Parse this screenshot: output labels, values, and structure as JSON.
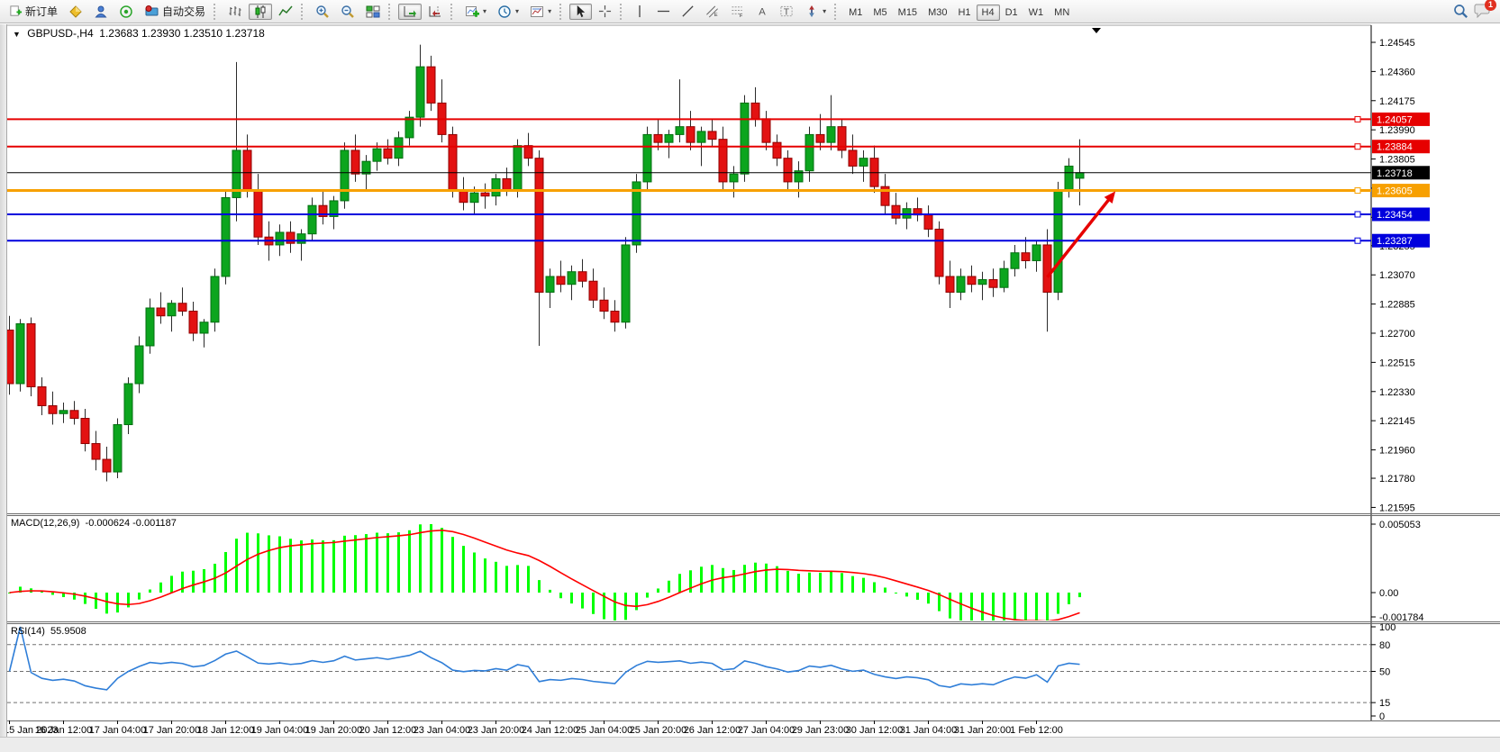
{
  "toolbar": {
    "new_order": "新订单",
    "autotrade": "自动交易",
    "timeframes": [
      "M1",
      "M5",
      "M15",
      "M30",
      "H1",
      "H4",
      "D1",
      "W1",
      "MN"
    ],
    "active_timeframe": "H4",
    "notification_badge": "1",
    "icons": [
      "new-order-icon",
      "diamond-icon",
      "profile-icon",
      "signal-icon",
      "autotrade-icon",
      "bar-chart-icon",
      "candlestick-icon",
      "line-chart-icon",
      "zoom-in-icon",
      "zoom-out-icon",
      "tile-windows-icon",
      "auto-scroll-icon",
      "chart-shift-icon",
      "indicators-icon",
      "periods-icon",
      "templates-icon",
      "cursor-icon",
      "crosshair-icon",
      "vertical-line-icon",
      "horizontal-line-icon",
      "trendline-icon",
      "channel-icon",
      "fibonacci-icon",
      "text-icon",
      "label-icon",
      "arrows-icon",
      "search-icon",
      "chat-icon"
    ]
  },
  "chart_header": {
    "symbol_period": "GBPUSD-,H4",
    "ohlc": "1.23683 1.23930 1.23510 1.23718"
  },
  "chart_data": {
    "type": "candlestick",
    "symbol": "GBPUSD",
    "period": "H4",
    "colors": {
      "bull": "#0ca51e",
      "bull_border": "#036e10",
      "bear": "#e31212",
      "bear_border": "#8f0000",
      "wick": "#2b2b2b",
      "macd_histogram": "#00ff00",
      "macd_signal": "#ff0000",
      "rsi_line": "#2f7ed8",
      "level_red": "#e60000",
      "level_blue": "#0000dd",
      "level_orange": "#f7a000",
      "bid_line": "#000000",
      "arrow": "#e60000"
    },
    "y_axis_ticks": [
      "1.24545",
      "1.24360",
      "1.24175",
      "1.23990",
      "1.23805",
      "1.23620",
      "1.23435",
      "1.23255",
      "1.23070",
      "1.22885",
      "1.22700",
      "1.22515",
      "1.22330",
      "1.22145",
      "1.21960",
      "1.21780",
      "1.21595"
    ],
    "price_lines": [
      {
        "price": 1.24057,
        "label": "1.24057",
        "color": "#e60000",
        "width": 2,
        "handle": true
      },
      {
        "price": 1.23884,
        "label": "1.23884",
        "color": "#e60000",
        "width": 2,
        "handle": true
      },
      {
        "price": 1.23718,
        "label": "1.23718",
        "color": "#000000",
        "width": 1,
        "handle": false
      },
      {
        "price": 1.23605,
        "label": "1.23605",
        "color": "#f7a000",
        "width": 3,
        "handle": true
      },
      {
        "price": 1.23454,
        "label": "1.23454",
        "color": "#0000dd",
        "width": 2,
        "handle": true
      },
      {
        "price": 1.23287,
        "label": "1.23287",
        "color": "#0000dd",
        "width": 2,
        "handle": true
      }
    ],
    "trend_arrow": {
      "x1_candle": 96,
      "price1": 1.23055,
      "x2_candle": 102.3,
      "price2": 1.236,
      "color": "#e60000"
    },
    "x_labels": [
      "15 Jan 2023",
      "16 Jan 12:00",
      "17 Jan 04:00",
      "17 Jan 20:00",
      "18 Jan 12:00",
      "19 Jan 04:00",
      "19 Jan 20:00",
      "20 Jan 12:00",
      "23 Jan 04:00",
      "23 Jan 20:00",
      "24 Jan 12:00",
      "25 Jan 04:00",
      "25 Jan 20:00",
      "26 Jan 12:00",
      "27 Jan 04:00",
      "29 Jan 23:00",
      "30 Jan 12:00",
      "31 Jan 04:00",
      "31 Jan 20:00",
      "1 Feb 12:00"
    ],
    "label_every": 5,
    "candles": [
      [
        1.2272,
        1.2281,
        1.2231,
        1.2238
      ],
      [
        1.2238,
        1.2279,
        1.2233,
        1.2276
      ],
      [
        1.2276,
        1.228,
        1.223,
        1.2236
      ],
      [
        1.2236,
        1.2242,
        1.2218,
        1.2224
      ],
      [
        1.2224,
        1.2233,
        1.2212,
        1.2219
      ],
      [
        1.2219,
        1.2226,
        1.2213,
        1.2221
      ],
      [
        1.2221,
        1.2227,
        1.2212,
        1.2216
      ],
      [
        1.2216,
        1.2222,
        1.2195,
        1.22
      ],
      [
        1.22,
        1.2208,
        1.2183,
        1.219
      ],
      [
        1.219,
        1.2198,
        1.2176,
        1.2182
      ],
      [
        1.2182,
        1.2216,
        1.2178,
        1.2212
      ],
      [
        1.2212,
        1.2242,
        1.2206,
        1.2238
      ],
      [
        1.2238,
        1.2268,
        1.2232,
        1.2262
      ],
      [
        1.2262,
        1.2292,
        1.2257,
        1.2286
      ],
      [
        1.2286,
        1.2296,
        1.2276,
        1.2281
      ],
      [
        1.2281,
        1.2291,
        1.2271,
        1.2289
      ],
      [
        1.2289,
        1.2299,
        1.2281,
        1.2284
      ],
      [
        1.2284,
        1.229,
        1.2265,
        1.227
      ],
      [
        1.227,
        1.2279,
        1.2261,
        1.2277
      ],
      [
        1.2277,
        1.2311,
        1.2271,
        1.2306
      ],
      [
        1.2306,
        1.2361,
        1.2301,
        1.2356
      ],
      [
        1.2356,
        1.2442,
        1.2341,
        1.2386
      ],
      [
        1.2386,
        1.2396,
        1.2356,
        1.2361
      ],
      [
        1.2361,
        1.2371,
        1.2326,
        1.2331
      ],
      [
        1.2331,
        1.2341,
        1.2316,
        1.2326
      ],
      [
        1.2326,
        1.2339,
        1.2319,
        1.2334
      ],
      [
        1.2334,
        1.2341,
        1.2321,
        1.2327
      ],
      [
        1.2327,
        1.2336,
        1.2316,
        1.2333
      ],
      [
        1.2333,
        1.2356,
        1.2329,
        1.2351
      ],
      [
        1.2351,
        1.2361,
        1.2339,
        1.2344
      ],
      [
        1.2344,
        1.2357,
        1.2336,
        1.2354
      ],
      [
        1.2354,
        1.2391,
        1.2349,
        1.2386
      ],
      [
        1.2386,
        1.2396,
        1.2366,
        1.2371
      ],
      [
        1.2371,
        1.2383,
        1.2361,
        1.2379
      ],
      [
        1.2379,
        1.2391,
        1.2373,
        1.2387
      ],
      [
        1.2387,
        1.2393,
        1.2377,
        1.2381
      ],
      [
        1.2381,
        1.2398,
        1.2376,
        1.2394
      ],
      [
        1.2394,
        1.2411,
        1.2389,
        1.2407
      ],
      [
        1.2407,
        1.2453,
        1.2401,
        1.2439
      ],
      [
        1.2439,
        1.2446,
        1.2411,
        1.2416
      ],
      [
        1.2416,
        1.2431,
        1.2391,
        1.2396
      ],
      [
        1.2396,
        1.2401,
        1.2356,
        1.2361
      ],
      [
        1.2361,
        1.2369,
        1.2348,
        1.2353
      ],
      [
        1.2353,
        1.2363,
        1.2346,
        1.2359
      ],
      [
        1.2359,
        1.2365,
        1.2349,
        1.2357
      ],
      [
        1.2357,
        1.2371,
        1.2351,
        1.2368
      ],
      [
        1.2368,
        1.2375,
        1.2357,
        1.2361
      ],
      [
        1.2361,
        1.2393,
        1.2356,
        1.2389
      ],
      [
        1.2389,
        1.2397,
        1.2376,
        1.2381
      ],
      [
        1.2381,
        1.2386,
        1.2262,
        1.2296
      ],
      [
        1.2296,
        1.2311,
        1.2286,
        1.2306
      ],
      [
        1.2306,
        1.2316,
        1.2296,
        1.2301
      ],
      [
        1.2301,
        1.2313,
        1.2291,
        1.2309
      ],
      [
        1.2309,
        1.2317,
        1.2299,
        1.2303
      ],
      [
        1.2303,
        1.2311,
        1.2286,
        1.2291
      ],
      [
        1.2291,
        1.2299,
        1.2279,
        1.2284
      ],
      [
        1.2284,
        1.2291,
        1.2271,
        1.2277
      ],
      [
        1.2277,
        1.2331,
        1.2273,
        1.2326
      ],
      [
        1.2326,
        1.2371,
        1.2321,
        1.2366
      ],
      [
        1.2366,
        1.2401,
        1.2361,
        1.2396
      ],
      [
        1.2396,
        1.2406,
        1.2386,
        1.2391
      ],
      [
        1.2391,
        1.2399,
        1.2381,
        1.2396
      ],
      [
        1.2396,
        1.2431,
        1.2391,
        1.2401
      ],
      [
        1.2401,
        1.2411,
        1.2386,
        1.2391
      ],
      [
        1.2391,
        1.2401,
        1.2376,
        1.2398
      ],
      [
        1.2398,
        1.2406,
        1.2388,
        1.2393
      ],
      [
        1.2393,
        1.2401,
        1.2361,
        1.2366
      ],
      [
        1.2366,
        1.2376,
        1.2356,
        1.2371
      ],
      [
        1.2371,
        1.2421,
        1.2366,
        1.2416
      ],
      [
        1.2416,
        1.2426,
        1.2401,
        1.2406
      ],
      [
        1.2406,
        1.2411,
        1.2386,
        1.2391
      ],
      [
        1.2391,
        1.2396,
        1.2376,
        1.2381
      ],
      [
        1.2381,
        1.2386,
        1.2361,
        1.2366
      ],
      [
        1.2366,
        1.2379,
        1.2356,
        1.2373
      ],
      [
        1.2373,
        1.2401,
        1.2366,
        1.2396
      ],
      [
        1.2396,
        1.2409,
        1.2386,
        1.2391
      ],
      [
        1.2391,
        1.2421,
        1.2386,
        1.2401
      ],
      [
        1.2401,
        1.2406,
        1.2381,
        1.2386
      ],
      [
        1.2386,
        1.2396,
        1.2371,
        1.2376
      ],
      [
        1.2376,
        1.2386,
        1.2366,
        1.2381
      ],
      [
        1.2381,
        1.2389,
        1.2359,
        1.2363
      ],
      [
        1.2363,
        1.2371,
        1.2346,
        1.2351
      ],
      [
        1.2351,
        1.2359,
        1.2339,
        1.2343
      ],
      [
        1.2343,
        1.2353,
        1.2336,
        1.2349
      ],
      [
        1.2349,
        1.2356,
        1.2341,
        1.2345
      ],
      [
        1.2345,
        1.2351,
        1.2331,
        1.2336
      ],
      [
        1.2336,
        1.2341,
        1.2301,
        1.2306
      ],
      [
        1.2306,
        1.2316,
        1.2286,
        1.2296
      ],
      [
        1.2296,
        1.2311,
        1.2291,
        1.2306
      ],
      [
        1.2306,
        1.2313,
        1.2296,
        1.2301
      ],
      [
        1.2301,
        1.2309,
        1.2291,
        1.2304
      ],
      [
        1.2304,
        1.2311,
        1.2293,
        1.2299
      ],
      [
        1.2299,
        1.2316,
        1.2296,
        1.2311
      ],
      [
        1.2311,
        1.2326,
        1.2306,
        1.2321
      ],
      [
        1.2321,
        1.2331,
        1.2311,
        1.2316
      ],
      [
        1.2316,
        1.2329,
        1.2309,
        1.2326
      ],
      [
        1.2326,
        1.2336,
        1.2271,
        1.2296
      ],
      [
        1.2296,
        1.2366,
        1.2291,
        1.2361
      ],
      [
        1.2361,
        1.2381,
        1.2356,
        1.2376
      ],
      [
        1.23683,
        1.2393,
        1.2351,
        1.23718
      ]
    ],
    "macd": {
      "label": "MACD(12,26,9)",
      "values_text": "-0.000624 -0.001187",
      "axis": [
        "0.005053",
        "0.00",
        "-0.001784"
      ]
    },
    "rsi": {
      "label": "RSI(14)",
      "value_text": "55.9508",
      "levels": [
        "100",
        "80",
        "50",
        "15",
        "0"
      ],
      "dashed_levels": [
        80,
        50,
        15
      ]
    }
  }
}
